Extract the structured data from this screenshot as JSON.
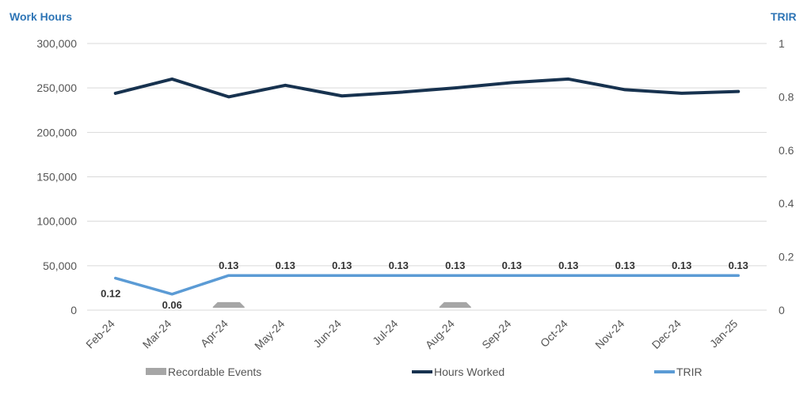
{
  "chart_data": {
    "type": "line",
    "title": "",
    "y_left_label": "Work Hours",
    "y_right_label": "TRIR",
    "y_left_ticks": [
      "0",
      "50,000",
      "100,000",
      "150,000",
      "200,000",
      "250,000",
      "300,000"
    ],
    "y_right_ticks": [
      "0",
      "0.2",
      "0.4",
      "0.6",
      "0.8",
      "1"
    ],
    "ylim_left": [
      0,
      300000
    ],
    "ylim_right": [
      0,
      1
    ],
    "categories": [
      "Feb-24",
      "Mar-24",
      "Apr-24",
      "May-24",
      "Jun-24",
      "Jul-24",
      "Aug-24",
      "Sep-24",
      "Oct-24",
      "Nov-24",
      "Dec-24",
      "Jan-25"
    ],
    "series": [
      {
        "name": "Recordable Events",
        "type": "bar",
        "axis": "right",
        "color": "#a6a6a6",
        "values": [
          0,
          0,
          0.03,
          0,
          0,
          0,
          0.03,
          0,
          0,
          0,
          0,
          0
        ]
      },
      {
        "name": "Hours Worked",
        "type": "line",
        "axis": "left",
        "color": "#17324f",
        "values": [
          244000,
          260000,
          240000,
          253000,
          241000,
          245000,
          250000,
          256000,
          260000,
          248000,
          244000,
          246000
        ]
      },
      {
        "name": "TRIR",
        "type": "line",
        "axis": "right",
        "color": "#5b9bd5",
        "values": [
          0.12,
          0.06,
          0.13,
          0.13,
          0.13,
          0.13,
          0.13,
          0.13,
          0.13,
          0.13,
          0.13,
          0.13
        ],
        "data_labels": [
          "0.12",
          "0.06",
          "0.13",
          "0.13",
          "0.13",
          "0.13",
          "0.13",
          "0.13",
          "0.13",
          "0.13",
          "0.13",
          "0.13"
        ]
      }
    ],
    "grid": true,
    "legend_position": "bottom"
  }
}
